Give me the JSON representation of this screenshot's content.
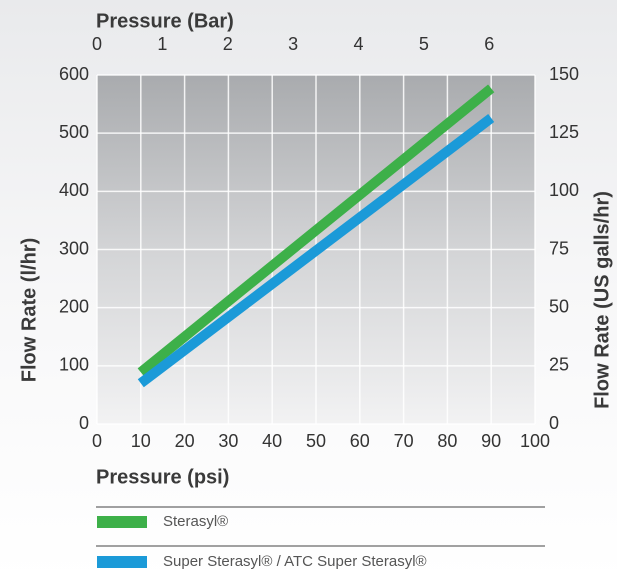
{
  "chart_data": {
    "type": "line",
    "xlabel": "Pressure (psi)",
    "x2label": "Pressure (Bar)",
    "ylabel": "Flow Rate (l/hr)",
    "y2label": "Flow Rate (US galls/hr)",
    "x": [
      10,
      90
    ],
    "series": [
      {
        "name": "Sterasyl®",
        "color": "#3db049",
        "values": [
          89,
          577
        ]
      },
      {
        "name": "Super Sterasyl® / ATC Super Sterasyl®",
        "color": "#1b9ad8",
        "values": [
          70,
          526
        ]
      }
    ],
    "xlim": [
      0,
      100
    ],
    "xticks": [
      0,
      10,
      20,
      30,
      40,
      50,
      60,
      70,
      80,
      90,
      100
    ],
    "x2lim": [
      0,
      6.7
    ],
    "x2ticks": [
      0,
      1,
      2,
      3,
      4,
      5,
      6
    ],
    "ylim": [
      0,
      600
    ],
    "yticks": [
      0,
      100,
      200,
      300,
      400,
      500,
      600
    ],
    "y2lim": [
      0,
      150
    ],
    "y2ticks": [
      0,
      25,
      50,
      75,
      100,
      125,
      150
    ],
    "grid": true
  }
}
